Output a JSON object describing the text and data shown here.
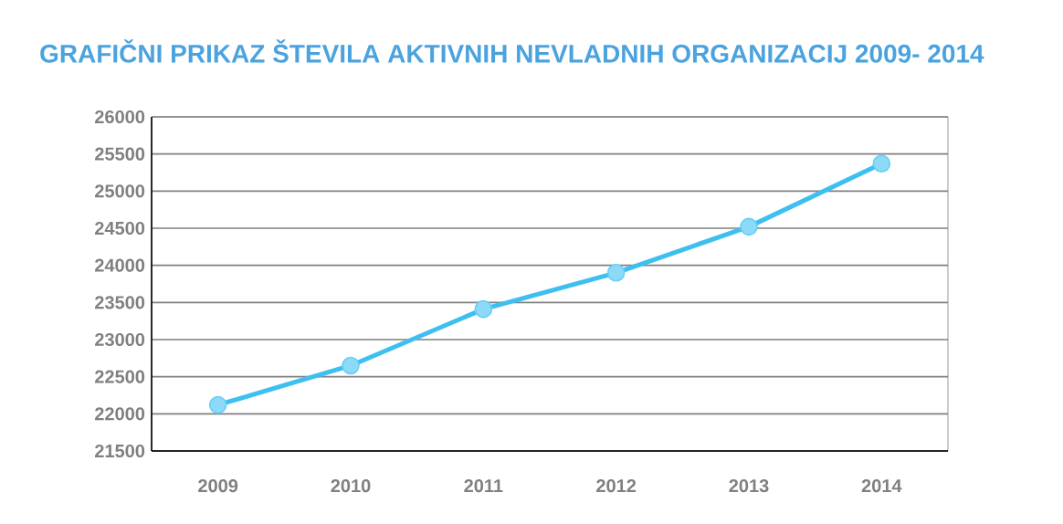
{
  "chart_data": {
    "type": "line",
    "title": "GRAFIČNI PRIKAZ ŠTEVILA AKTIVNIH NEVLADNIH ORGANIZACIJ 2009- 2014",
    "categories": [
      "2009",
      "2010",
      "2011",
      "2012",
      "2013",
      "2014"
    ],
    "series": [
      {
        "color": "#3dbfef",
        "values": [
          22120,
          22650,
          23410,
          23900,
          24520,
          25370
        ]
      }
    ],
    "ylim": [
      21500,
      26000
    ],
    "yticks": [
      21500,
      22000,
      22500,
      23000,
      23500,
      24000,
      24500,
      25000,
      25500,
      26000
    ],
    "grid": "y",
    "marker": "circle",
    "line_style": "solid"
  }
}
